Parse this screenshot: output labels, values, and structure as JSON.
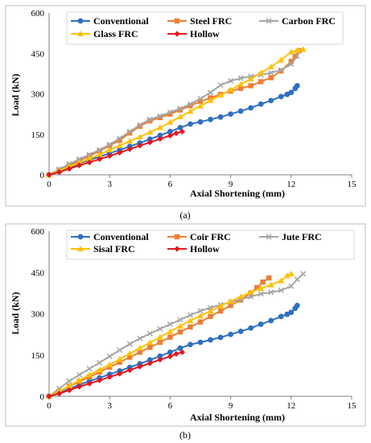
{
  "colors": {
    "Conventional": "#2F6FC1",
    "Steel FRC": "#ED7D31",
    "Carbon FRC": "#A5A5A5",
    "Glass FRC": "#FFC000",
    "Hollow": "#E0181E",
    "Coir FRC": "#ED7D31",
    "Jute FRC": "#A5A5A5",
    "Sisal FRC": "#FFC000"
  },
  "chart_data": [
    {
      "type": "line",
      "caption": "(a)",
      "xlabel": "Axial Shortening (mm)",
      "ylabel": "Load (kN)",
      "xlim": [
        0,
        15
      ],
      "ylim": [
        0,
        600
      ],
      "xticks": [
        "0",
        "3",
        "6",
        "9",
        "12",
        "15"
      ],
      "yticks": [
        "0",
        "150",
        "300",
        "450",
        "600"
      ],
      "legend": "top",
      "series": [
        {
          "name": "Conventional",
          "marker": "circle",
          "x": [
            0,
            0.5,
            1,
            1.5,
            2,
            2.5,
            3,
            3.5,
            4,
            4.5,
            5,
            5.5,
            6,
            6.5,
            7,
            7.5,
            8,
            8.5,
            9,
            9.5,
            10,
            10.5,
            11,
            11.5,
            11.8,
            12,
            12.2,
            12.3
          ],
          "y": [
            0,
            12,
            27,
            42,
            55,
            67,
            80,
            92,
            105,
            118,
            132,
            146,
            160,
            175,
            188,
            196,
            205,
            214,
            225,
            236,
            248,
            262,
            275,
            290,
            298,
            305,
            320,
            330
          ]
        },
        {
          "name": "Steel FRC",
          "marker": "square",
          "x": [
            0,
            0.5,
            1,
            1.5,
            2,
            2.5,
            3,
            3.5,
            4,
            4.5,
            5,
            5.5,
            6,
            6.5,
            7,
            7.5,
            8,
            8.5,
            9,
            9.5,
            10,
            10.5,
            11,
            11.5,
            12,
            12.2,
            12.4
          ],
          "y": [
            0,
            18,
            35,
            52,
            70,
            88,
            108,
            128,
            155,
            180,
            200,
            212,
            225,
            240,
            256,
            272,
            285,
            298,
            310,
            320,
            330,
            345,
            360,
            385,
            420,
            440,
            460
          ]
        },
        {
          "name": "Carbon FRC",
          "marker": "cross",
          "x": [
            0,
            0.5,
            1,
            1.5,
            2,
            2.5,
            3,
            3.5,
            4,
            4.5,
            5,
            5.5,
            6,
            6.5,
            7,
            7.5,
            8,
            8.5,
            9,
            9.5,
            10,
            10.5,
            11,
            11.5,
            12,
            12.3
          ],
          "y": [
            0,
            20,
            40,
            58,
            75,
            92,
            112,
            135,
            160,
            185,
            205,
            218,
            232,
            245,
            262,
            282,
            305,
            332,
            348,
            358,
            365,
            370,
            378,
            388,
            410,
            440
          ]
        },
        {
          "name": "Glass FRC",
          "marker": "triangle",
          "x": [
            0,
            0.5,
            1,
            1.5,
            2,
            2.5,
            3,
            3.5,
            4,
            4.5,
            5,
            5.5,
            6,
            6.5,
            7,
            7.5,
            8,
            8.5,
            9,
            9.5,
            10,
            10.5,
            11,
            11.5,
            12,
            12.3,
            12.6
          ],
          "y": [
            0,
            15,
            30,
            45,
            60,
            75,
            92,
            108,
            125,
            140,
            158,
            175,
            195,
            215,
            235,
            255,
            275,
            295,
            315,
            335,
            355,
            378,
            400,
            425,
            455,
            462,
            465
          ]
        },
        {
          "name": "Hollow",
          "marker": "diamond",
          "x": [
            0,
            0.5,
            1,
            1.5,
            2,
            2.5,
            3,
            3.5,
            4,
            4.5,
            5,
            5.5,
            6,
            6.3,
            6.6
          ],
          "y": [
            0,
            10,
            22,
            35,
            46,
            58,
            70,
            82,
            95,
            108,
            120,
            133,
            145,
            154,
            160
          ]
        }
      ]
    },
    {
      "type": "line",
      "caption": "(b)",
      "xlabel": "Axial Shortening (mm)",
      "ylabel": "Load (kN)",
      "xlim": [
        0,
        15
      ],
      "ylim": [
        0,
        600
      ],
      "xticks": [
        "0",
        "3",
        "6",
        "9",
        "12",
        "15"
      ],
      "yticks": [
        "0",
        "150",
        "300",
        "450",
        "600"
      ],
      "legend": "top",
      "series": [
        {
          "name": "Conventional",
          "marker": "circle",
          "x": [
            0,
            0.5,
            1,
            1.5,
            2,
            2.5,
            3,
            3.5,
            4,
            4.5,
            5,
            5.5,
            6,
            6.5,
            7,
            7.5,
            8,
            8.5,
            9,
            9.5,
            10,
            10.5,
            11,
            11.5,
            11.8,
            12,
            12.2,
            12.3
          ],
          "y": [
            0,
            12,
            27,
            42,
            55,
            67,
            80,
            92,
            105,
            118,
            132,
            146,
            160,
            175,
            188,
            196,
            205,
            214,
            225,
            236,
            248,
            262,
            275,
            290,
            298,
            305,
            320,
            330
          ]
        },
        {
          "name": "Coir FRC",
          "marker": "square",
          "x": [
            0,
            0.5,
            1,
            1.5,
            2,
            2.5,
            3,
            3.5,
            4,
            4.5,
            5,
            5.5,
            6,
            6.5,
            7,
            7.5,
            8,
            8.5,
            9,
            9.5,
            10,
            10.3,
            10.6,
            10.9
          ],
          "y": [
            0,
            18,
            36,
            54,
            70,
            88,
            106,
            124,
            142,
            160,
            178,
            196,
            215,
            234,
            252,
            270,
            290,
            310,
            330,
            350,
            375,
            395,
            415,
            430
          ]
        },
        {
          "name": "Jute FRC",
          "marker": "cross",
          "x": [
            0,
            0.5,
            1,
            1.5,
            2,
            2.5,
            3,
            3.5,
            4,
            4.5,
            5,
            5.5,
            6,
            6.5,
            7,
            7.5,
            8,
            8.5,
            9,
            9.5,
            10,
            10.5,
            11,
            11.5,
            12,
            12.3,
            12.6
          ],
          "y": [
            0,
            28,
            55,
            78,
            100,
            122,
            145,
            168,
            190,
            210,
            228,
            245,
            262,
            278,
            295,
            310,
            322,
            332,
            342,
            352,
            362,
            372,
            378,
            385,
            400,
            425,
            445
          ]
        },
        {
          "name": "Sisal FRC",
          "marker": "triangle",
          "x": [
            0,
            0.5,
            1,
            1.5,
            2,
            2.5,
            3,
            3.5,
            4,
            4.5,
            5,
            5.5,
            6,
            6.5,
            7,
            7.5,
            8,
            8.5,
            9,
            9.5,
            10,
            10.5,
            11,
            11.5,
            11.8,
            12
          ],
          "y": [
            0,
            18,
            38,
            58,
            78,
            96,
            115,
            135,
            155,
            175,
            195,
            215,
            235,
            255,
            275,
            292,
            310,
            328,
            345,
            362,
            378,
            392,
            405,
            420,
            438,
            445
          ]
        },
        {
          "name": "Hollow",
          "marker": "diamond",
          "x": [
            0,
            0.5,
            1,
            1.5,
            2,
            2.5,
            3,
            3.5,
            4,
            4.5,
            5,
            5.5,
            6,
            6.3,
            6.6
          ],
          "y": [
            0,
            10,
            22,
            35,
            46,
            58,
            70,
            82,
            95,
            108,
            120,
            133,
            145,
            154,
            160
          ]
        }
      ]
    }
  ]
}
